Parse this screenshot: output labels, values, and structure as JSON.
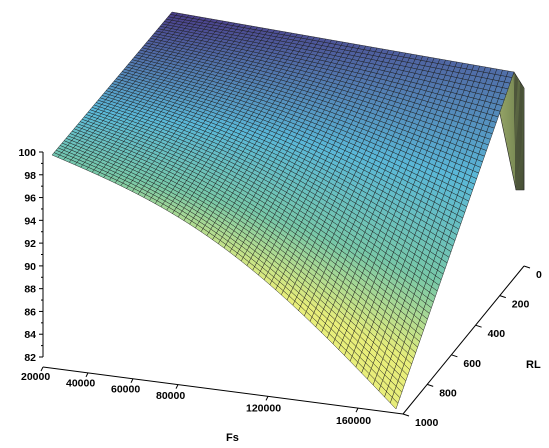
{
  "chart_data": {
    "type": "surface",
    "xlabel": "Fs",
    "ylabel": "RL",
    "zlabel": "",
    "x_range": [
      20000,
      180000
    ],
    "y_range": [
      0,
      1000
    ],
    "z_range": [
      82,
      100
    ],
    "x_ticks": [
      "20000",
      "40000",
      "60000",
      "80000",
      "120000",
      "160000"
    ],
    "y_ticks": [
      "0",
      "200",
      "400",
      "600",
      "800",
      "1000"
    ],
    "z_ticks": [
      "82",
      "84",
      "86",
      "88",
      "90",
      "92",
      "94",
      "96",
      "98",
      "100"
    ],
    "grid_resolution": [
      60,
      60
    ],
    "surface_points": [
      {
        "x": 20000,
        "y": 0,
        "z": 100
      },
      {
        "x": 180000,
        "y": 0,
        "z": 100
      },
      {
        "x": 20000,
        "y": 1000,
        "z": 100
      },
      {
        "x": 180000,
        "y": 1000,
        "z": 81
      }
    ],
    "colors": {
      "low": "#e8ee7a",
      "mid_low": "#78c8a8",
      "mid_high": "#5ab8d8",
      "high": "#4a3d88",
      "wall": "#7a8f5a",
      "mesh": "#1a1a1a"
    }
  }
}
